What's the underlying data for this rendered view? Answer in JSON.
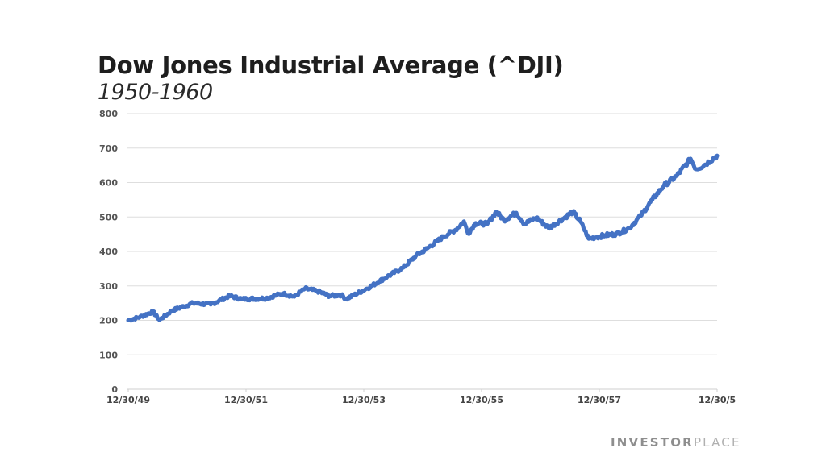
{
  "chart_data": {
    "type": "line",
    "title": "Dow Jones Industrial Average (^DJI)",
    "subtitle": "1950-1960",
    "xlabel": "",
    "ylabel": "",
    "ylim": [
      0,
      800
    ],
    "xlim": [
      1950.0,
      1960.0
    ],
    "grid": true,
    "legend": "none",
    "line_color": "#4472c4",
    "y_ticks": [
      "0",
      "100",
      "200",
      "300",
      "400",
      "500",
      "600",
      "700",
      "800"
    ],
    "y_tick_values": [
      0,
      100,
      200,
      300,
      400,
      500,
      600,
      700,
      800
    ],
    "x_ticks": [
      "12/30/49",
      "12/30/51",
      "12/30/53",
      "12/30/55",
      "12/30/57",
      "12/30/5"
    ],
    "x_tick_values": [
      1950.0,
      1952.0,
      1954.0,
      1956.0,
      1958.0,
      1960.0
    ],
    "series": [
      {
        "name": "DJI",
        "x": [
          1950.0,
          1950.2,
          1950.42,
          1950.53,
          1950.75,
          1951.1,
          1951.4,
          1951.72,
          1951.93,
          1952.34,
          1952.62,
          1952.82,
          1953.0,
          1953.21,
          1953.42,
          1953.62,
          1953.7,
          1954.05,
          1954.4,
          1954.67,
          1954.88,
          1955.08,
          1955.36,
          1955.56,
          1955.7,
          1955.77,
          1955.9,
          1956.1,
          1956.25,
          1956.38,
          1956.59,
          1956.73,
          1956.93,
          1957.14,
          1957.41,
          1957.55,
          1957.68,
          1957.82,
          1957.96,
          1958.1,
          1958.3,
          1958.51,
          1958.7,
          1958.9,
          1959.1,
          1959.32,
          1959.55,
          1959.64,
          1959.78,
          1960.0
        ],
        "y": [
          200,
          210,
          225,
          201,
          229,
          250,
          246,
          271,
          262,
          264,
          278,
          269,
          292,
          285,
          271,
          274,
          262,
          292,
          327,
          353,
          386,
          409,
          444,
          463,
          487,
          452,
          482,
          480,
          515,
          491,
          512,
          480,
          498,
          468,
          498,
          515,
          487,
          437,
          442,
          447,
          451,
          468,
          503,
          550,
          592,
          620,
          669,
          639,
          650,
          678
        ]
      }
    ]
  },
  "brand": {
    "part1": "INVESTOR",
    "part2": "PLACE"
  }
}
